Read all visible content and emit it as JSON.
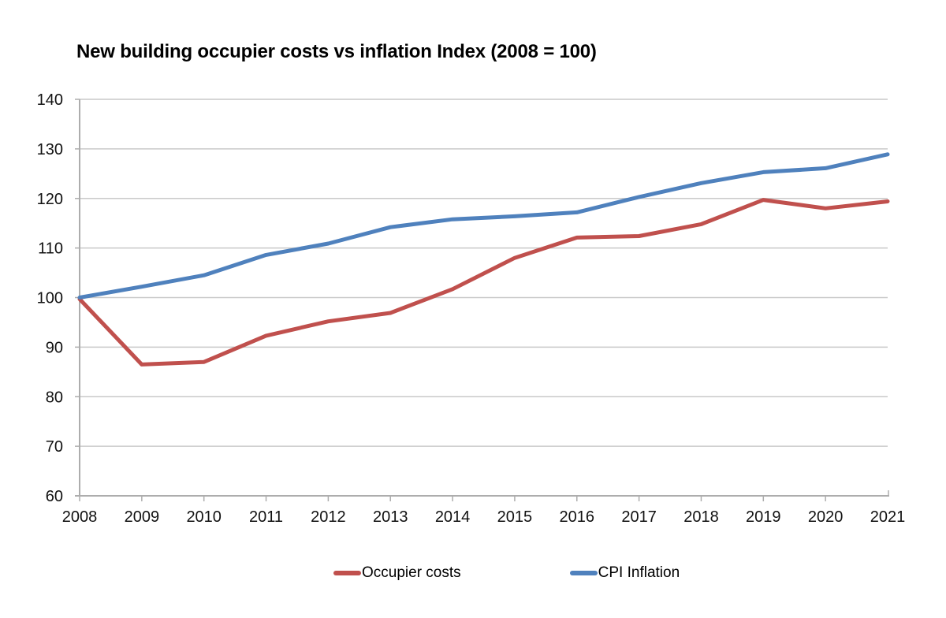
{
  "title": "New building occupier costs vs inflation Index (2008 = 100)",
  "colors": {
    "occupier_costs": "#C0504D",
    "cpi_inflation": "#4F81BD",
    "gridline": "#C9C9C9",
    "axis": "#ADADAD",
    "label_text": "#111111",
    "background": "#FFFFFF"
  },
  "legend": {
    "items": [
      {
        "label": "Occupier costs",
        "color": "#C0504D"
      },
      {
        "label": "CPI Inflation",
        "color": "#4F81BD"
      }
    ]
  },
  "chart_data": {
    "type": "line",
    "title": "New building occupier costs vs inflation Index (2008 = 100)",
    "x": [
      2008,
      2009,
      2010,
      2011,
      2012,
      2013,
      2014,
      2015,
      2016,
      2017,
      2018,
      2019,
      2020,
      2021
    ],
    "series": [
      {
        "name": "Occupier costs",
        "color": "#C0504D",
        "values": [
          99.7,
          86.5,
          87.0,
          92.3,
          95.2,
          96.9,
          101.7,
          108.0,
          112.1,
          112.4,
          114.8,
          119.7,
          118.0,
          119.4
        ]
      },
      {
        "name": "CPI Inflation",
        "color": "#4F81BD",
        "values": [
          100.0,
          102.2,
          104.5,
          108.6,
          110.9,
          114.2,
          115.8,
          116.4,
          117.2,
          120.3,
          123.1,
          125.3,
          126.1,
          128.9
        ]
      }
    ],
    "ylim": [
      60,
      140
    ],
    "ytick_step": 10,
    "xlabel": "",
    "ylabel": "",
    "grid": true,
    "legend_position": "bottom"
  }
}
